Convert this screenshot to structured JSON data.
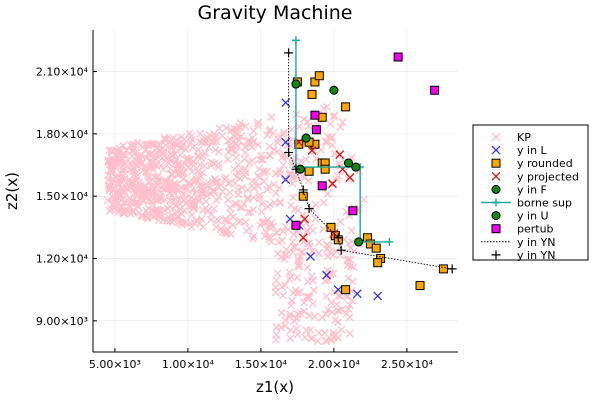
{
  "chart_data": {
    "type": "scatter",
    "title": "Gravity Machine",
    "xlabel": "z1(x)",
    "ylabel": "z2(x)",
    "xlim": [
      3500,
      28500
    ],
    "ylim": [
      7500,
      23000
    ],
    "xticks": [
      {
        "value": 5000,
        "label": "5.00×10³"
      },
      {
        "value": 10000,
        "label": "1.00×10⁴"
      },
      {
        "value": 15000,
        "label": "1.50×10⁴"
      },
      {
        "value": 20000,
        "label": "2.00×10⁴"
      },
      {
        "value": 25000,
        "label": "2.50×10⁴"
      }
    ],
    "yticks": [
      {
        "value": 9000,
        "label": "9.00×10³"
      },
      {
        "value": 12000,
        "label": "1.20×10⁴"
      },
      {
        "value": 15000,
        "label": "1.50×10⁴"
      },
      {
        "value": 18000,
        "label": "1.80×10⁴"
      },
      {
        "value": 21000,
        "label": "2.10×10⁴"
      }
    ],
    "grid": true,
    "legend_position": "right",
    "kp_cloud": {
      "description": "dense cloud of several hundred pink x markers",
      "count": 950,
      "main_region": {
        "x": [
          4500,
          23500
        ],
        "y": [
          12500,
          19500
        ]
      },
      "tail_region": {
        "x": [
          16000,
          21500
        ],
        "y": [
          8000,
          13000
        ]
      }
    },
    "series": [
      {
        "name": "KP",
        "marker": "x",
        "color": "#ffc0cb"
      },
      {
        "name": "y in L",
        "marker": "x",
        "color": "#3333dd",
        "x": [
          16700,
          16700,
          16700,
          17000,
          17600,
          18400,
          19500,
          20300,
          21600,
          23000
        ],
        "y": [
          19500,
          17600,
          15800,
          13900,
          13600,
          12100,
          11200,
          10500,
          10300,
          10200
        ]
      },
      {
        "name": "y rounded",
        "marker": "square",
        "color": "#ffa500",
        "x": [
          18700,
          19000,
          17500,
          18500,
          19200,
          18700,
          20800,
          19200,
          19400,
          19400,
          18300,
          18300,
          17600,
          17900,
          19800,
          20100,
          20300,
          22300,
          22500,
          22900,
          23200,
          23000,
          20800,
          25900,
          27500
        ],
        "y": [
          20500,
          20800,
          20500,
          19900,
          18800,
          17500,
          19300,
          16600,
          16600,
          16300,
          16200,
          17600,
          17500,
          15000,
          13500,
          13100,
          12900,
          13000,
          12700,
          12500,
          12000,
          11800,
          10500,
          10700,
          11500
        ]
      },
      {
        "name": "y projected",
        "marker": "x",
        "color": "#dd1111",
        "x": [
          17600,
          18500,
          20400,
          20600,
          21100,
          19900,
          20000,
          18000,
          17900
        ],
        "y": [
          17600,
          17200,
          17000,
          16300,
          15900,
          15600,
          13200,
          13900,
          13000
        ]
      },
      {
        "name": "y in F",
        "marker": "circle",
        "color": "#118811",
        "x": [
          17400,
          18100,
          20000,
          21000,
          21500,
          21700,
          17700
        ],
        "y": [
          20400,
          17800,
          20100,
          16600,
          16400,
          12800,
          16300
        ]
      },
      {
        "name": "borne sup",
        "marker": "line-plus",
        "color": "#1aaa9a",
        "path": [
          [
            17400,
            22500
          ],
          [
            17400,
            16400
          ],
          [
            21800,
            16400
          ],
          [
            21800,
            12800
          ],
          [
            23800,
            12800
          ]
        ]
      },
      {
        "name": "y in U",
        "marker": "circle",
        "color": "#118811",
        "x": [
          17400,
          18100,
          20000,
          21000,
          21500,
          21700,
          17700
        ],
        "y": [
          20400,
          17800,
          20100,
          16600,
          16400,
          12800,
          16300
        ]
      },
      {
        "name": "pertub",
        "marker": "square",
        "color": "#ee00ee",
        "x": [
          24400,
          26900,
          18700,
          18800,
          19200,
          21300,
          17400
        ],
        "y": [
          21700,
          20100,
          18900,
          18200,
          15500,
          14300,
          13600
        ]
      },
      {
        "name": "y in YN",
        "marker": "dotted-line",
        "color": "#000000",
        "path": [
          [
            16900,
            21900
          ],
          [
            16900,
            17100
          ],
          [
            17400,
            16300
          ],
          [
            17900,
            15300
          ],
          [
            18300,
            14400
          ],
          [
            20300,
            13000
          ],
          [
            20500,
            12400
          ],
          [
            28100,
            11500
          ]
        ]
      },
      {
        "name": "y in YN",
        "marker": "plus",
        "color": "#000000",
        "x": [
          16900,
          16900,
          17400,
          17900,
          18300,
          20300,
          20500,
          28100
        ],
        "y": [
          21900,
          17100,
          16300,
          15300,
          14400,
          13000,
          12400,
          11500
        ]
      }
    ]
  }
}
